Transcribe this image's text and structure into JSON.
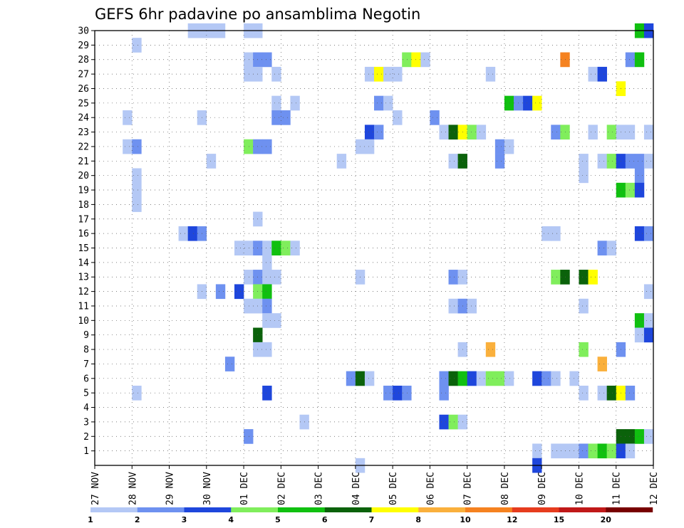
{
  "chart_data": {
    "type": "heatmap",
    "title": "GEFS 6hr padavine po ansamblima Negotin",
    "x_tick_labels": [
      "27 NOV",
      "28 NOV",
      "29 NOV",
      "30 NOV",
      "01 DEC",
      "02 DEC",
      "03 DEC",
      "04 DEC",
      "05 DEC",
      "06 DEC",
      "07 DEC",
      "08 DEC",
      "09 DEC",
      "10 DEC",
      "11 DEC",
      "12 DEC"
    ],
    "y_tick_labels": [
      "1",
      "2",
      "3",
      "4",
      "5",
      "6",
      "7",
      "8",
      "9",
      "10",
      "11",
      "12",
      "13",
      "14",
      "15",
      "16",
      "17",
      "18",
      "19",
      "20",
      "21",
      "22",
      "23",
      "24",
      "25",
      "26",
      "27",
      "28",
      "29",
      "30"
    ],
    "xlabel": "",
    "ylabel": "",
    "grid": true,
    "x_range_steps": [
      0,
      60
    ],
    "y_range": [
      0,
      30
    ],
    "colorbar": {
      "labels": [
        "1",
        "2",
        "3",
        "4",
        "5",
        "6",
        "7",
        "8",
        "10",
        "12",
        "15",
        "20"
      ],
      "colors": [
        "#b4c8f5",
        "#6e91f0",
        "#1e46dc",
        "#80ee5c",
        "#10c010",
        "#0b620b",
        "#ffff00",
        "#fab03c",
        "#f58220",
        "#e63c1e",
        "#c01818",
        "#780000"
      ]
    },
    "cells": [
      [
        10,
        30,
        0
      ],
      [
        11,
        30,
        0
      ],
      [
        12,
        30,
        0
      ],
      [
        13,
        30,
        0
      ],
      [
        16,
        30,
        0
      ],
      [
        17,
        30,
        0
      ],
      [
        58,
        30,
        4
      ],
      [
        59,
        30,
        2
      ],
      [
        4,
        29,
        0
      ],
      [
        16,
        28,
        0
      ],
      [
        17,
        28,
        1
      ],
      [
        18,
        28,
        1
      ],
      [
        33,
        28,
        3
      ],
      [
        34,
        28,
        6
      ],
      [
        35,
        28,
        0
      ],
      [
        50,
        28,
        8
      ],
      [
        57,
        28,
        1
      ],
      [
        58,
        28,
        4
      ],
      [
        16,
        27,
        0
      ],
      [
        17,
        27,
        0
      ],
      [
        19,
        27,
        0
      ],
      [
        29,
        27,
        0
      ],
      [
        30,
        27,
        6
      ],
      [
        31,
        27,
        0
      ],
      [
        32,
        27,
        0
      ],
      [
        42,
        27,
        0
      ],
      [
        53,
        27,
        0
      ],
      [
        54,
        27,
        2
      ],
      [
        56,
        26,
        6
      ],
      [
        19,
        25,
        0
      ],
      [
        21,
        25,
        0
      ],
      [
        30,
        25,
        1
      ],
      [
        31,
        25,
        0
      ],
      [
        44,
        25,
        4
      ],
      [
        45,
        25,
        1
      ],
      [
        46,
        25,
        2
      ],
      [
        47,
        25,
        6
      ],
      [
        3,
        24,
        0
      ],
      [
        11,
        24,
        0
      ],
      [
        19,
        24,
        1
      ],
      [
        20,
        24,
        1
      ],
      [
        32,
        24,
        0
      ],
      [
        36,
        24,
        1
      ],
      [
        29,
        23,
        2
      ],
      [
        30,
        23,
        1
      ],
      [
        37,
        23,
        0
      ],
      [
        38,
        23,
        5
      ],
      [
        39,
        23,
        6
      ],
      [
        40,
        23,
        3
      ],
      [
        41,
        23,
        0
      ],
      [
        49,
        23,
        1
      ],
      [
        50,
        23,
        3
      ],
      [
        53,
        23,
        0
      ],
      [
        55,
        23,
        3
      ],
      [
        56,
        23,
        0
      ],
      [
        57,
        23,
        0
      ],
      [
        59,
        23,
        0
      ],
      [
        3,
        22,
        0
      ],
      [
        4,
        22,
        1
      ],
      [
        16,
        22,
        3
      ],
      [
        17,
        22,
        1
      ],
      [
        18,
        22,
        1
      ],
      [
        28,
        22,
        0
      ],
      [
        29,
        22,
        0
      ],
      [
        43,
        22,
        1
      ],
      [
        44,
        22,
        0
      ],
      [
        12,
        21,
        0
      ],
      [
        26,
        21,
        0
      ],
      [
        38,
        21,
        0
      ],
      [
        39,
        21,
        5
      ],
      [
        43,
        21,
        1
      ],
      [
        52,
        21,
        0
      ],
      [
        54,
        21,
        0
      ],
      [
        55,
        21,
        3
      ],
      [
        56,
        21,
        2
      ],
      [
        57,
        21,
        1
      ],
      [
        58,
        21,
        1
      ],
      [
        59,
        21,
        0
      ],
      [
        4,
        20,
        0
      ],
      [
        52,
        20,
        0
      ],
      [
        58,
        20,
        1
      ],
      [
        4,
        19,
        0
      ],
      [
        56,
        19,
        4
      ],
      [
        57,
        19,
        3
      ],
      [
        58,
        19,
        2
      ],
      [
        4,
        18,
        0
      ],
      [
        17,
        17,
        0
      ],
      [
        9,
        16,
        0
      ],
      [
        10,
        16,
        2
      ],
      [
        11,
        16,
        1
      ],
      [
        48,
        16,
        0
      ],
      [
        49,
        16,
        0
      ],
      [
        58,
        16,
        2
      ],
      [
        59,
        16,
        1
      ],
      [
        15,
        15,
        0
      ],
      [
        16,
        15,
        0
      ],
      [
        17,
        15,
        1
      ],
      [
        18,
        15,
        0
      ],
      [
        19,
        15,
        4
      ],
      [
        20,
        15,
        3
      ],
      [
        21,
        15,
        0
      ],
      [
        54,
        15,
        1
      ],
      [
        55,
        15,
        0
      ],
      [
        18,
        14,
        0
      ],
      [
        16,
        13,
        0
      ],
      [
        17,
        13,
        1
      ],
      [
        18,
        13,
        0
      ],
      [
        19,
        13,
        0
      ],
      [
        28,
        13,
        0
      ],
      [
        38,
        13,
        1
      ],
      [
        39,
        13,
        0
      ],
      [
        49,
        13,
        3
      ],
      [
        50,
        13,
        5
      ],
      [
        52,
        13,
        5
      ],
      [
        53,
        13,
        6
      ],
      [
        11,
        12,
        0
      ],
      [
        13,
        12,
        1
      ],
      [
        15,
        12,
        2
      ],
      [
        17,
        12,
        3
      ],
      [
        18,
        12,
        4
      ],
      [
        59,
        12,
        0
      ],
      [
        16,
        11,
        0
      ],
      [
        17,
        11,
        0
      ],
      [
        18,
        11,
        1
      ],
      [
        38,
        11,
        0
      ],
      [
        39,
        11,
        1
      ],
      [
        40,
        11,
        0
      ],
      [
        52,
        11,
        0
      ],
      [
        18,
        10,
        0
      ],
      [
        19,
        10,
        0
      ],
      [
        58,
        10,
        4
      ],
      [
        59,
        10,
        0
      ],
      [
        17,
        9,
        5
      ],
      [
        58,
        9,
        0
      ],
      [
        59,
        9,
        2
      ],
      [
        17,
        8,
        0
      ],
      [
        18,
        8,
        0
      ],
      [
        39,
        8,
        0
      ],
      [
        42,
        8,
        7
      ],
      [
        52,
        8,
        3
      ],
      [
        56,
        8,
        1
      ],
      [
        14,
        7,
        1
      ],
      [
        54,
        7,
        7
      ],
      [
        27,
        6,
        1
      ],
      [
        28,
        6,
        5
      ],
      [
        29,
        6,
        0
      ],
      [
        37,
        6,
        1
      ],
      [
        38,
        6,
        5
      ],
      [
        39,
        6,
        4
      ],
      [
        40,
        6,
        2
      ],
      [
        41,
        6,
        0
      ],
      [
        42,
        6,
        3
      ],
      [
        43,
        6,
        3
      ],
      [
        44,
        6,
        0
      ],
      [
        47,
        6,
        2
      ],
      [
        48,
        6,
        1
      ],
      [
        49,
        6,
        0
      ],
      [
        51,
        6,
        0
      ],
      [
        4,
        5,
        0
      ],
      [
        18,
        5,
        2
      ],
      [
        31,
        5,
        1
      ],
      [
        32,
        5,
        2
      ],
      [
        33,
        5,
        1
      ],
      [
        37,
        5,
        1
      ],
      [
        52,
        5,
        0
      ],
      [
        54,
        5,
        0
      ],
      [
        55,
        5,
        5
      ],
      [
        56,
        5,
        6
      ],
      [
        57,
        5,
        1
      ],
      [
        22,
        3,
        0
      ],
      [
        37,
        3,
        2
      ],
      [
        38,
        3,
        3
      ],
      [
        39,
        3,
        0
      ],
      [
        16,
        2,
        1
      ],
      [
        56,
        2,
        5
      ],
      [
        57,
        2,
        5
      ],
      [
        58,
        2,
        4
      ],
      [
        59,
        2,
        0
      ],
      [
        47,
        1,
        0
      ],
      [
        49,
        1,
        0
      ],
      [
        50,
        1,
        0
      ],
      [
        51,
        1,
        0
      ],
      [
        52,
        1,
        1
      ],
      [
        53,
        1,
        3
      ],
      [
        54,
        1,
        4
      ],
      [
        55,
        1,
        3
      ],
      [
        56,
        1,
        2
      ],
      [
        57,
        1,
        0
      ],
      [
        28,
        0,
        0
      ],
      [
        47,
        0,
        2
      ]
    ]
  }
}
